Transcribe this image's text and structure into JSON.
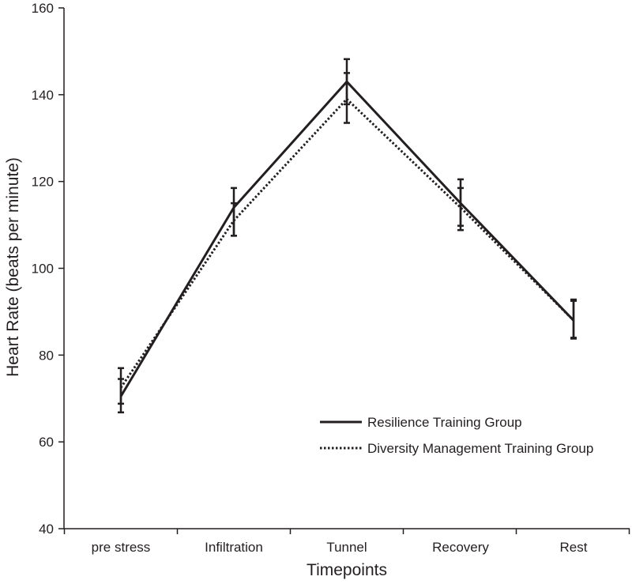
{
  "chart_data": {
    "type": "line",
    "title": "",
    "xlabel": "Timepoints",
    "ylabel": "Heart Rate (beats per minute)",
    "ylim": [
      40,
      160
    ],
    "yticks": [
      "40",
      "60",
      "80",
      "100",
      "120",
      "140",
      "160"
    ],
    "categories": [
      "pre stress",
      "Infiltration",
      "Tunnel",
      "Recovery",
      "Rest"
    ],
    "legend_position": "bottom-right",
    "series": [
      {
        "name": "Resilience Training Group",
        "style": "solid",
        "color": "#231f20",
        "values": [
          70.5,
          114,
          143,
          115,
          88
        ],
        "error_low": [
          66.8,
          107.5,
          137.8,
          109.8,
          83.8
        ],
        "error_high": [
          74.5,
          118.5,
          148.2,
          120.5,
          92.8
        ]
      },
      {
        "name": "Diversity Management Training Group",
        "style": "dotted",
        "color": "#231f20",
        "values": [
          72.5,
          111,
          139,
          114,
          88
        ],
        "error_low": [
          68.8,
          107.5,
          133.5,
          108.8,
          84
        ],
        "error_high": [
          77,
          115,
          145,
          118.5,
          92.5
        ]
      }
    ]
  }
}
